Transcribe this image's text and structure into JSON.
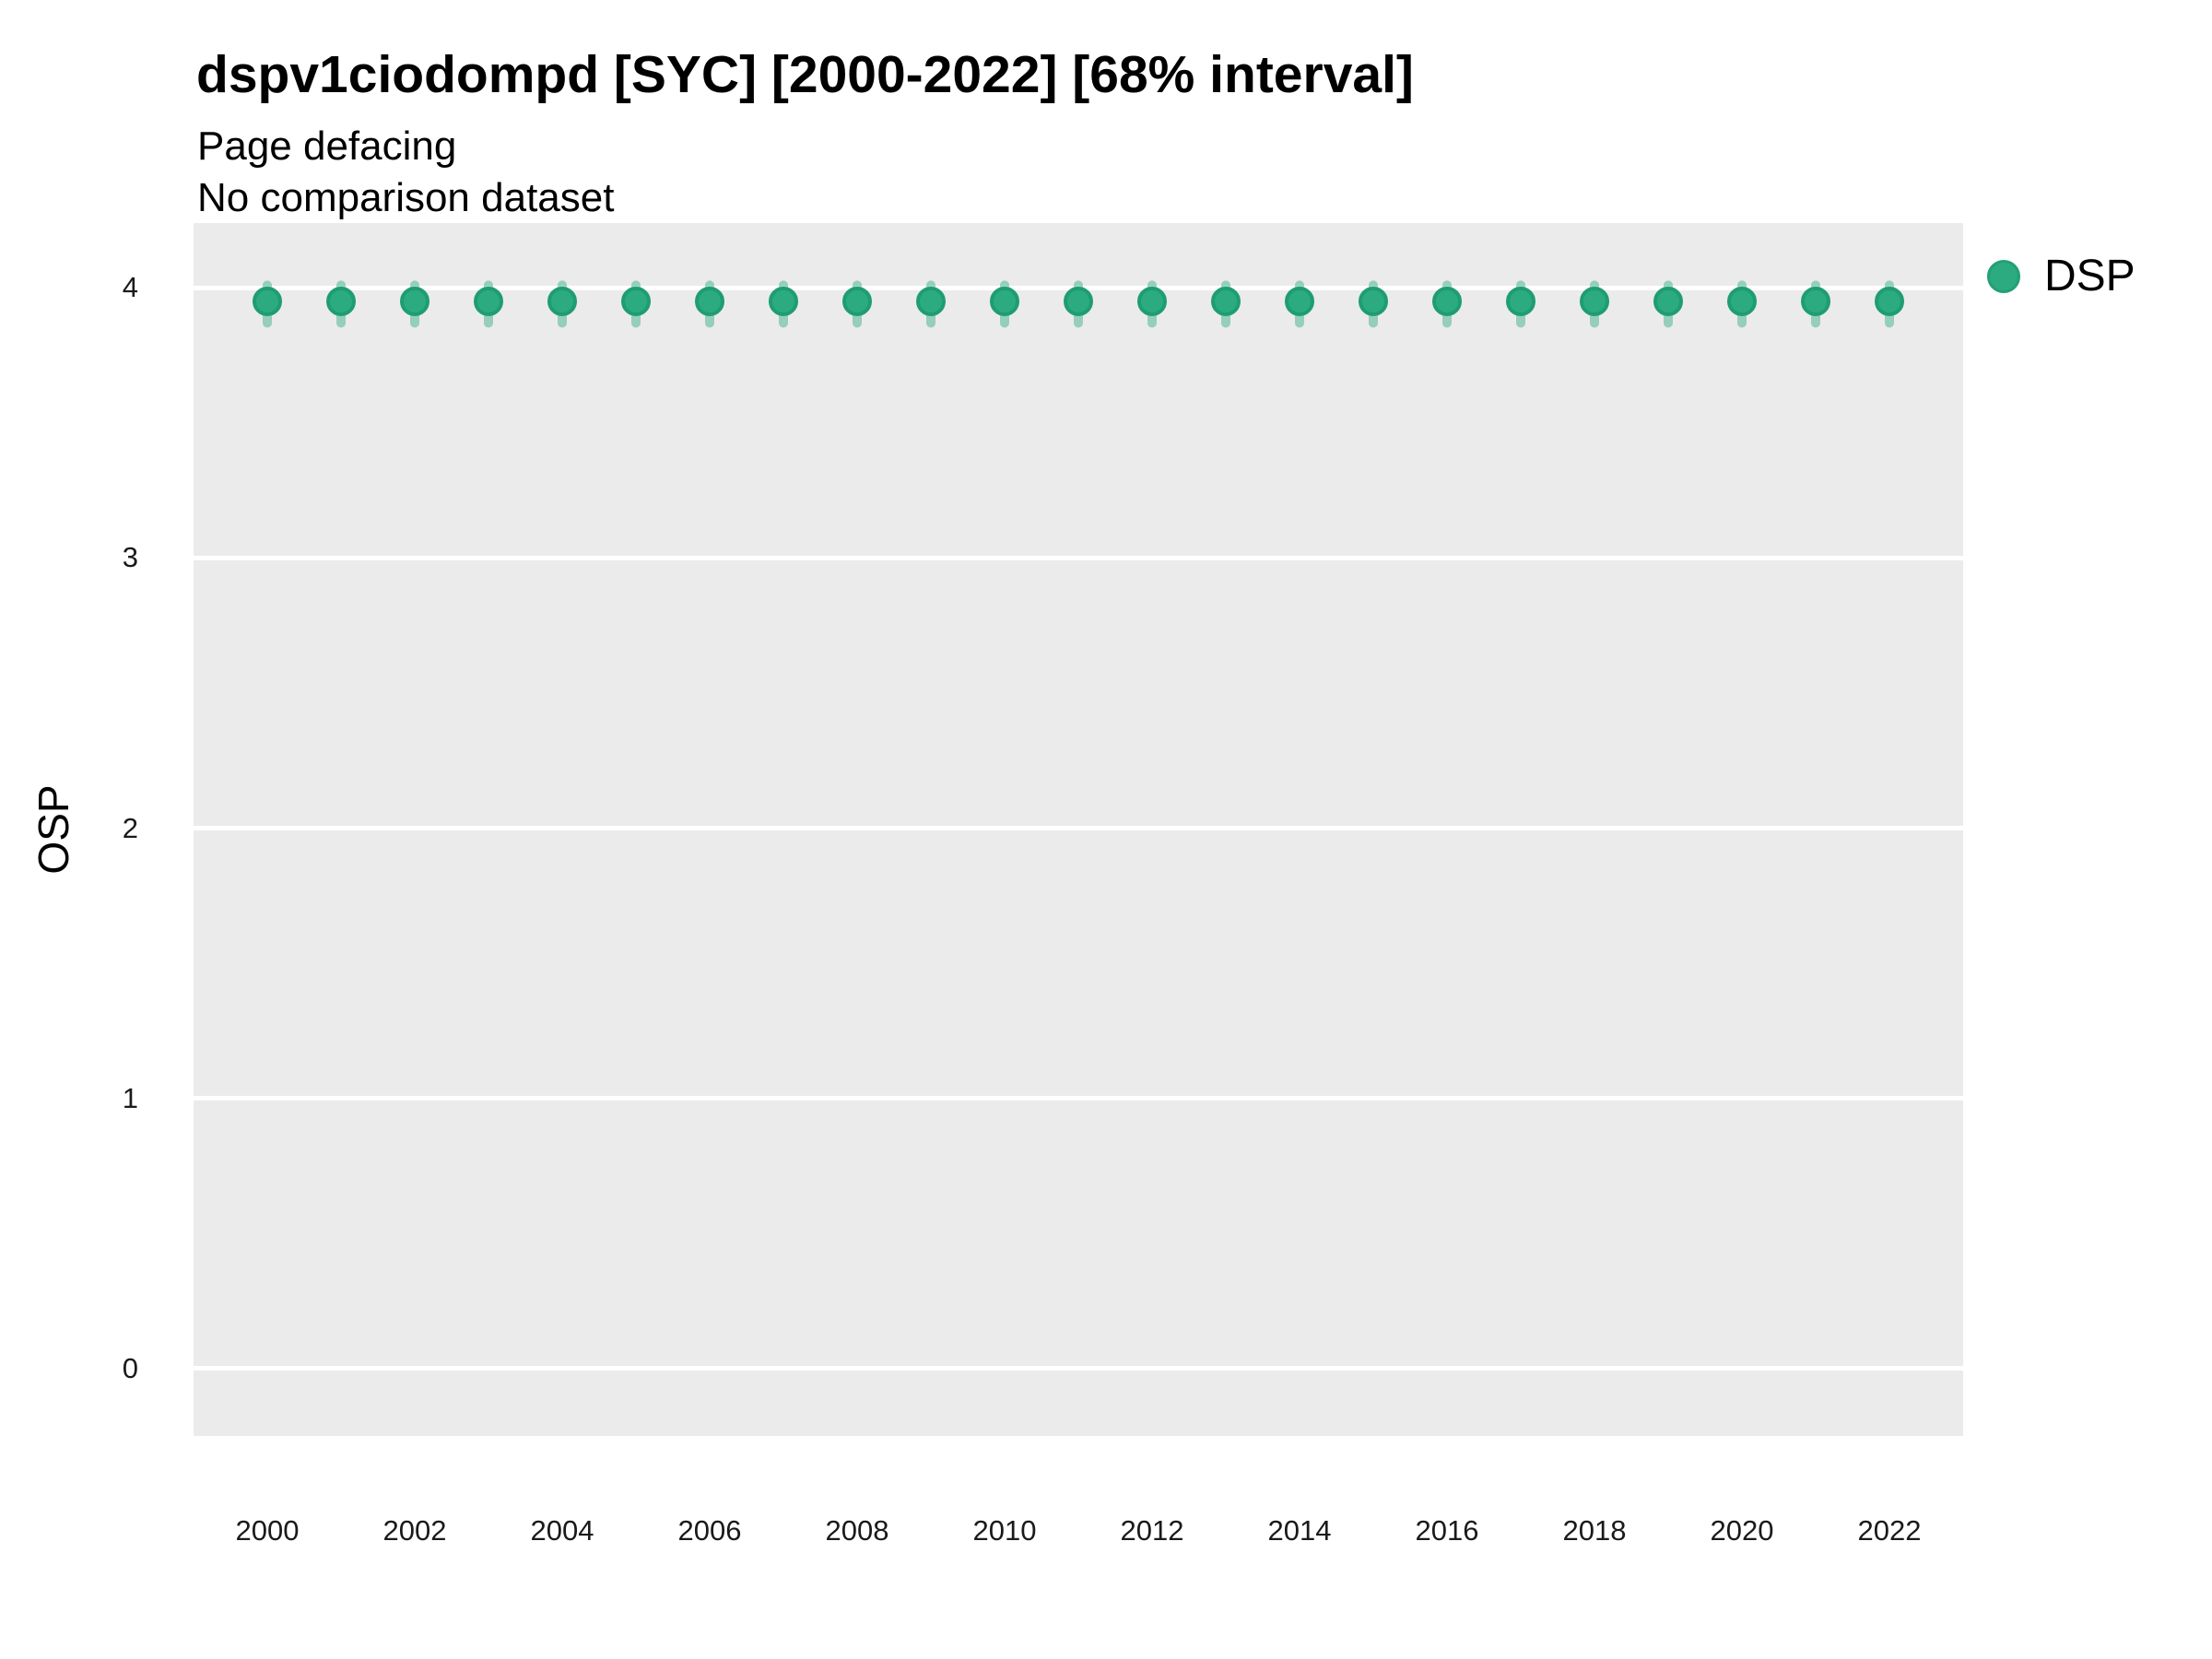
{
  "chart_data": {
    "type": "scatter",
    "title": "dspv1ciodompd [SYC] [2000-2022] [68% interval]",
    "subtitle": "Page defacing",
    "note": "No comparison dataset",
    "xlabel": "",
    "ylabel": "OSP",
    "interval_level": "68%",
    "legend_position": "right",
    "panel_background": "#ebebeb",
    "grid": {
      "horizontal_major": true,
      "vertical": false,
      "color": "#ffffff"
    },
    "xlim": [
      1999,
      2023
    ],
    "ylim": [
      -0.25,
      4.24
    ],
    "x_ticks": [
      2000,
      2002,
      2004,
      2006,
      2008,
      2010,
      2012,
      2014,
      2016,
      2018,
      2020,
      2022
    ],
    "y_ticks": [
      0,
      1,
      2,
      3,
      4
    ],
    "x": [
      2000,
      2001,
      2002,
      2003,
      2004,
      2005,
      2006,
      2007,
      2008,
      2009,
      2010,
      2011,
      2012,
      2013,
      2014,
      2015,
      2016,
      2017,
      2018,
      2019,
      2020,
      2021,
      2022
    ],
    "series": [
      {
        "name": "DSP",
        "color": "#2dab80",
        "edge_color": "#1f9d72",
        "whisker_color": "rgba(45,171,128,0.45)",
        "values": [
          3.95,
          3.95,
          3.95,
          3.95,
          3.95,
          3.95,
          3.95,
          3.95,
          3.95,
          3.95,
          3.95,
          3.95,
          3.95,
          3.95,
          3.95,
          3.95,
          3.95,
          3.95,
          3.95,
          3.95,
          3.95,
          3.95,
          3.95
        ],
        "interval_low": [
          3.87,
          3.87,
          3.87,
          3.87,
          3.87,
          3.87,
          3.87,
          3.87,
          3.87,
          3.87,
          3.87,
          3.87,
          3.87,
          3.87,
          3.87,
          3.87,
          3.87,
          3.87,
          3.87,
          3.87,
          3.87,
          3.87,
          3.87
        ],
        "interval_high": [
          4.01,
          4.01,
          4.01,
          4.01,
          4.01,
          4.01,
          4.01,
          4.01,
          4.01,
          4.01,
          4.01,
          4.01,
          4.01,
          4.01,
          4.01,
          4.01,
          4.01,
          4.01,
          4.01,
          4.01,
          4.01,
          4.01,
          4.01
        ]
      }
    ]
  }
}
